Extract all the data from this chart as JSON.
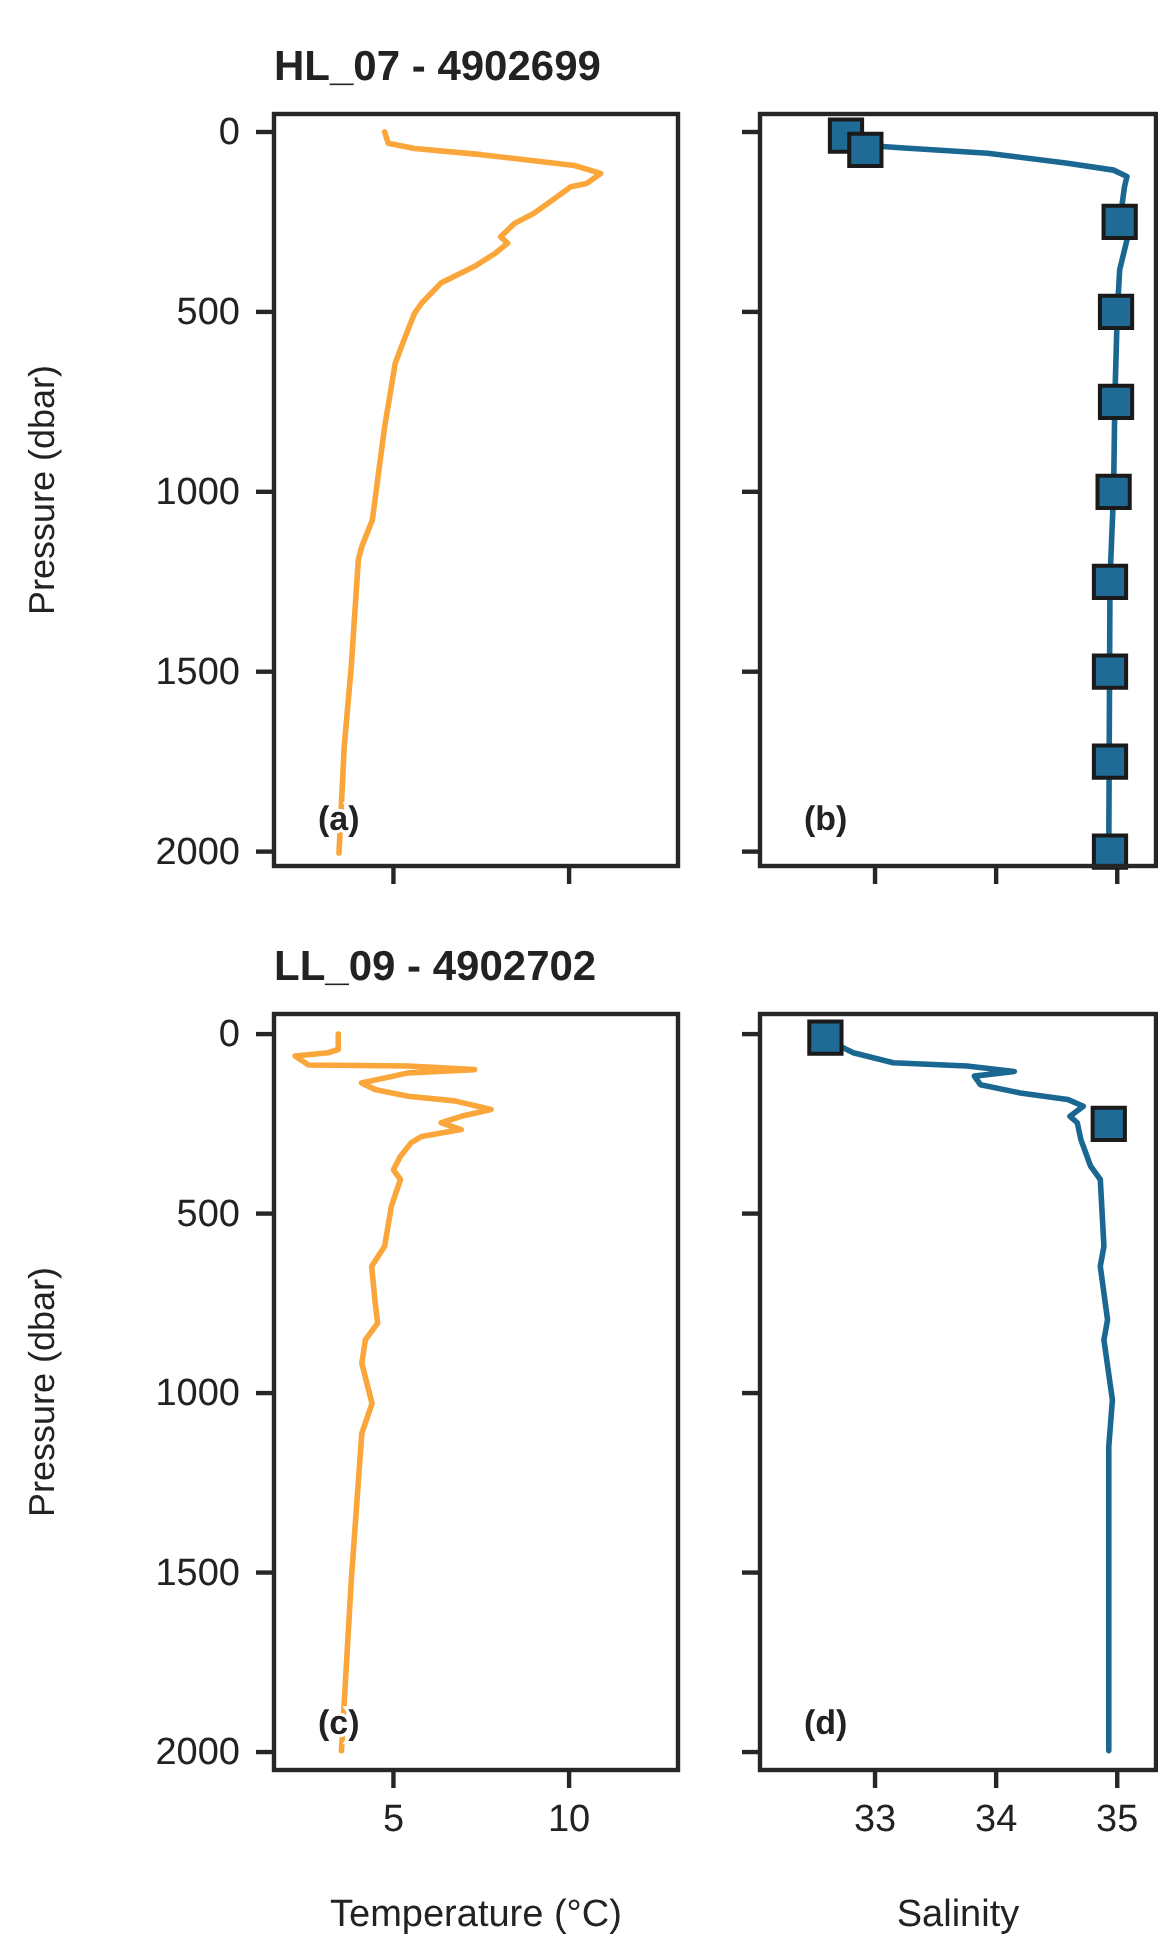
{
  "chart_data": [
    {
      "type": "line",
      "title": "HL_07 - 4902699",
      "ylabel": "Pressure (dbar)",
      "annotations": [
        "(a)"
      ],
      "xlim": [
        1.6,
        13.1
      ],
      "xticks": [
        5,
        10
      ],
      "ylim": [
        2040,
        -50
      ],
      "yticks": [
        0,
        500,
        1000,
        1500,
        2000
      ],
      "tick_labels": "y",
      "grid": false,
      "series": [
        {
          "color": "#fba63a",
          "x": [
            4.75,
            4.85,
            5.6,
            7.5,
            10.15,
            10.9,
            10.5,
            10.05,
            9.4,
            9.0,
            8.45,
            8.05,
            8.25,
            7.9,
            7.3,
            6.35,
            5.8,
            5.6,
            5.3,
            5.05,
            4.75,
            4.55,
            4.4,
            4.1,
            4.0,
            3.8,
            3.6,
            3.45
          ],
          "values": [
            0,
            31,
            46,
            63,
            93,
            115,
            143,
            152,
            198,
            226,
            254,
            291,
            309,
            337,
            374,
            420,
            476,
            504,
            578,
            643,
            819,
            967,
            1078,
            1152,
            1189,
            1485,
            1707,
            2004
          ]
        }
      ]
    },
    {
      "type": "line",
      "annotations": [
        "(b)"
      ],
      "xlim": [
        32.05,
        35.32
      ],
      "xticks": [
        33,
        34,
        35
      ],
      "ylim": [
        2040,
        -50
      ],
      "yticks": [
        0,
        500,
        1000,
        1500,
        2000
      ],
      "tick_labels": false,
      "grid": false,
      "series": [
        {
          "color": "#1a6892",
          "x": [
            32.77,
            32.91,
            33.21,
            33.93,
            34.59,
            34.97,
            35.08,
            35.06,
            35.03,
            35.08,
            35.02,
            35.0,
            34.98,
            34.97,
            34.94,
            34.93
          ],
          "values": [
            13,
            37,
            44,
            59,
            87,
            106,
            124,
            152,
            226,
            300,
            383,
            504,
            744,
            998,
            1245,
            2004
          ]
        },
        {
          "type": "scatter",
          "marker": "square",
          "color": "#1f6b96",
          "x": [
            32.76,
            32.92,
            35.02,
            34.99,
            34.99,
            34.97,
            34.94,
            34.94,
            34.94,
            34.94
          ],
          "values": [
            10,
            50,
            250,
            500,
            750,
            1000,
            1250,
            1500,
            1750,
            2000
          ]
        }
      ]
    },
    {
      "type": "line",
      "title": "LL_09 - 4902702",
      "ylabel": "Pressure (dbar)",
      "xlabel": "Temperature (°C)",
      "annotations": [
        "(c)"
      ],
      "xlim": [
        1.6,
        13.1
      ],
      "xticks": [
        5,
        10
      ],
      "ylim": [
        2050,
        -56
      ],
      "yticks": [
        0,
        500,
        1000,
        1500,
        2000
      ],
      "grid": false,
      "series": [
        {
          "color": "#fba63a",
          "x": [
            3.43,
            3.43,
            3.14,
            2.2,
            2.58,
            5.42,
            7.31,
            5.42,
            4.09,
            4.47,
            5.42,
            6.74,
            7.78,
            6.93,
            6.36,
            6.93,
            5.8,
            5.5,
            5.2,
            5.0,
            5.2,
            4.94,
            4.75,
            4.38,
            4.47,
            4.55,
            4.2,
            4.1,
            4.39,
            4.1,
            3.8,
            3.52
          ],
          "values": [
            0,
            43,
            52,
            61,
            86,
            89,
            99,
            108,
            136,
            154,
            173,
            186,
            210,
            229,
            247,
            266,
            285,
            303,
            340,
            378,
            405,
            480,
            591,
            647,
            740,
            805,
            852,
            917,
            1029,
            1112,
            1521,
            1996
          ]
        }
      ]
    },
    {
      "type": "line",
      "xlabel": "Salinity",
      "annotations": [
        "(d)"
      ],
      "xlim": [
        32.05,
        35.32
      ],
      "xticks": [
        33,
        34,
        35
      ],
      "ylim": [
        2050,
        -56
      ],
      "yticks": [
        0,
        500,
        1000,
        1500,
        2000
      ],
      "tick_labels": "x",
      "grid": false,
      "series": [
        {
          "color": "#1a6892",
          "x": [
            32.6,
            32.82,
            33.15,
            33.76,
            34.15,
            33.82,
            33.87,
            34.2,
            34.59,
            34.72,
            34.61,
            34.67,
            34.7,
            34.78,
            34.86,
            34.89,
            34.86,
            34.92,
            34.89,
            34.96,
            34.93,
            34.93
          ],
          "values": [
            15,
            52,
            80,
            89,
            104,
            117,
            141,
            164,
            182,
            201,
            229,
            247,
            294,
            368,
            405,
            591,
            647,
            796,
            852,
            1019,
            1149,
            1996
          ]
        },
        {
          "type": "scatter",
          "marker": "square",
          "color": "#1f6b96",
          "x": [
            32.59,
            34.93
          ],
          "values": [
            10,
            250
          ]
        }
      ]
    }
  ]
}
